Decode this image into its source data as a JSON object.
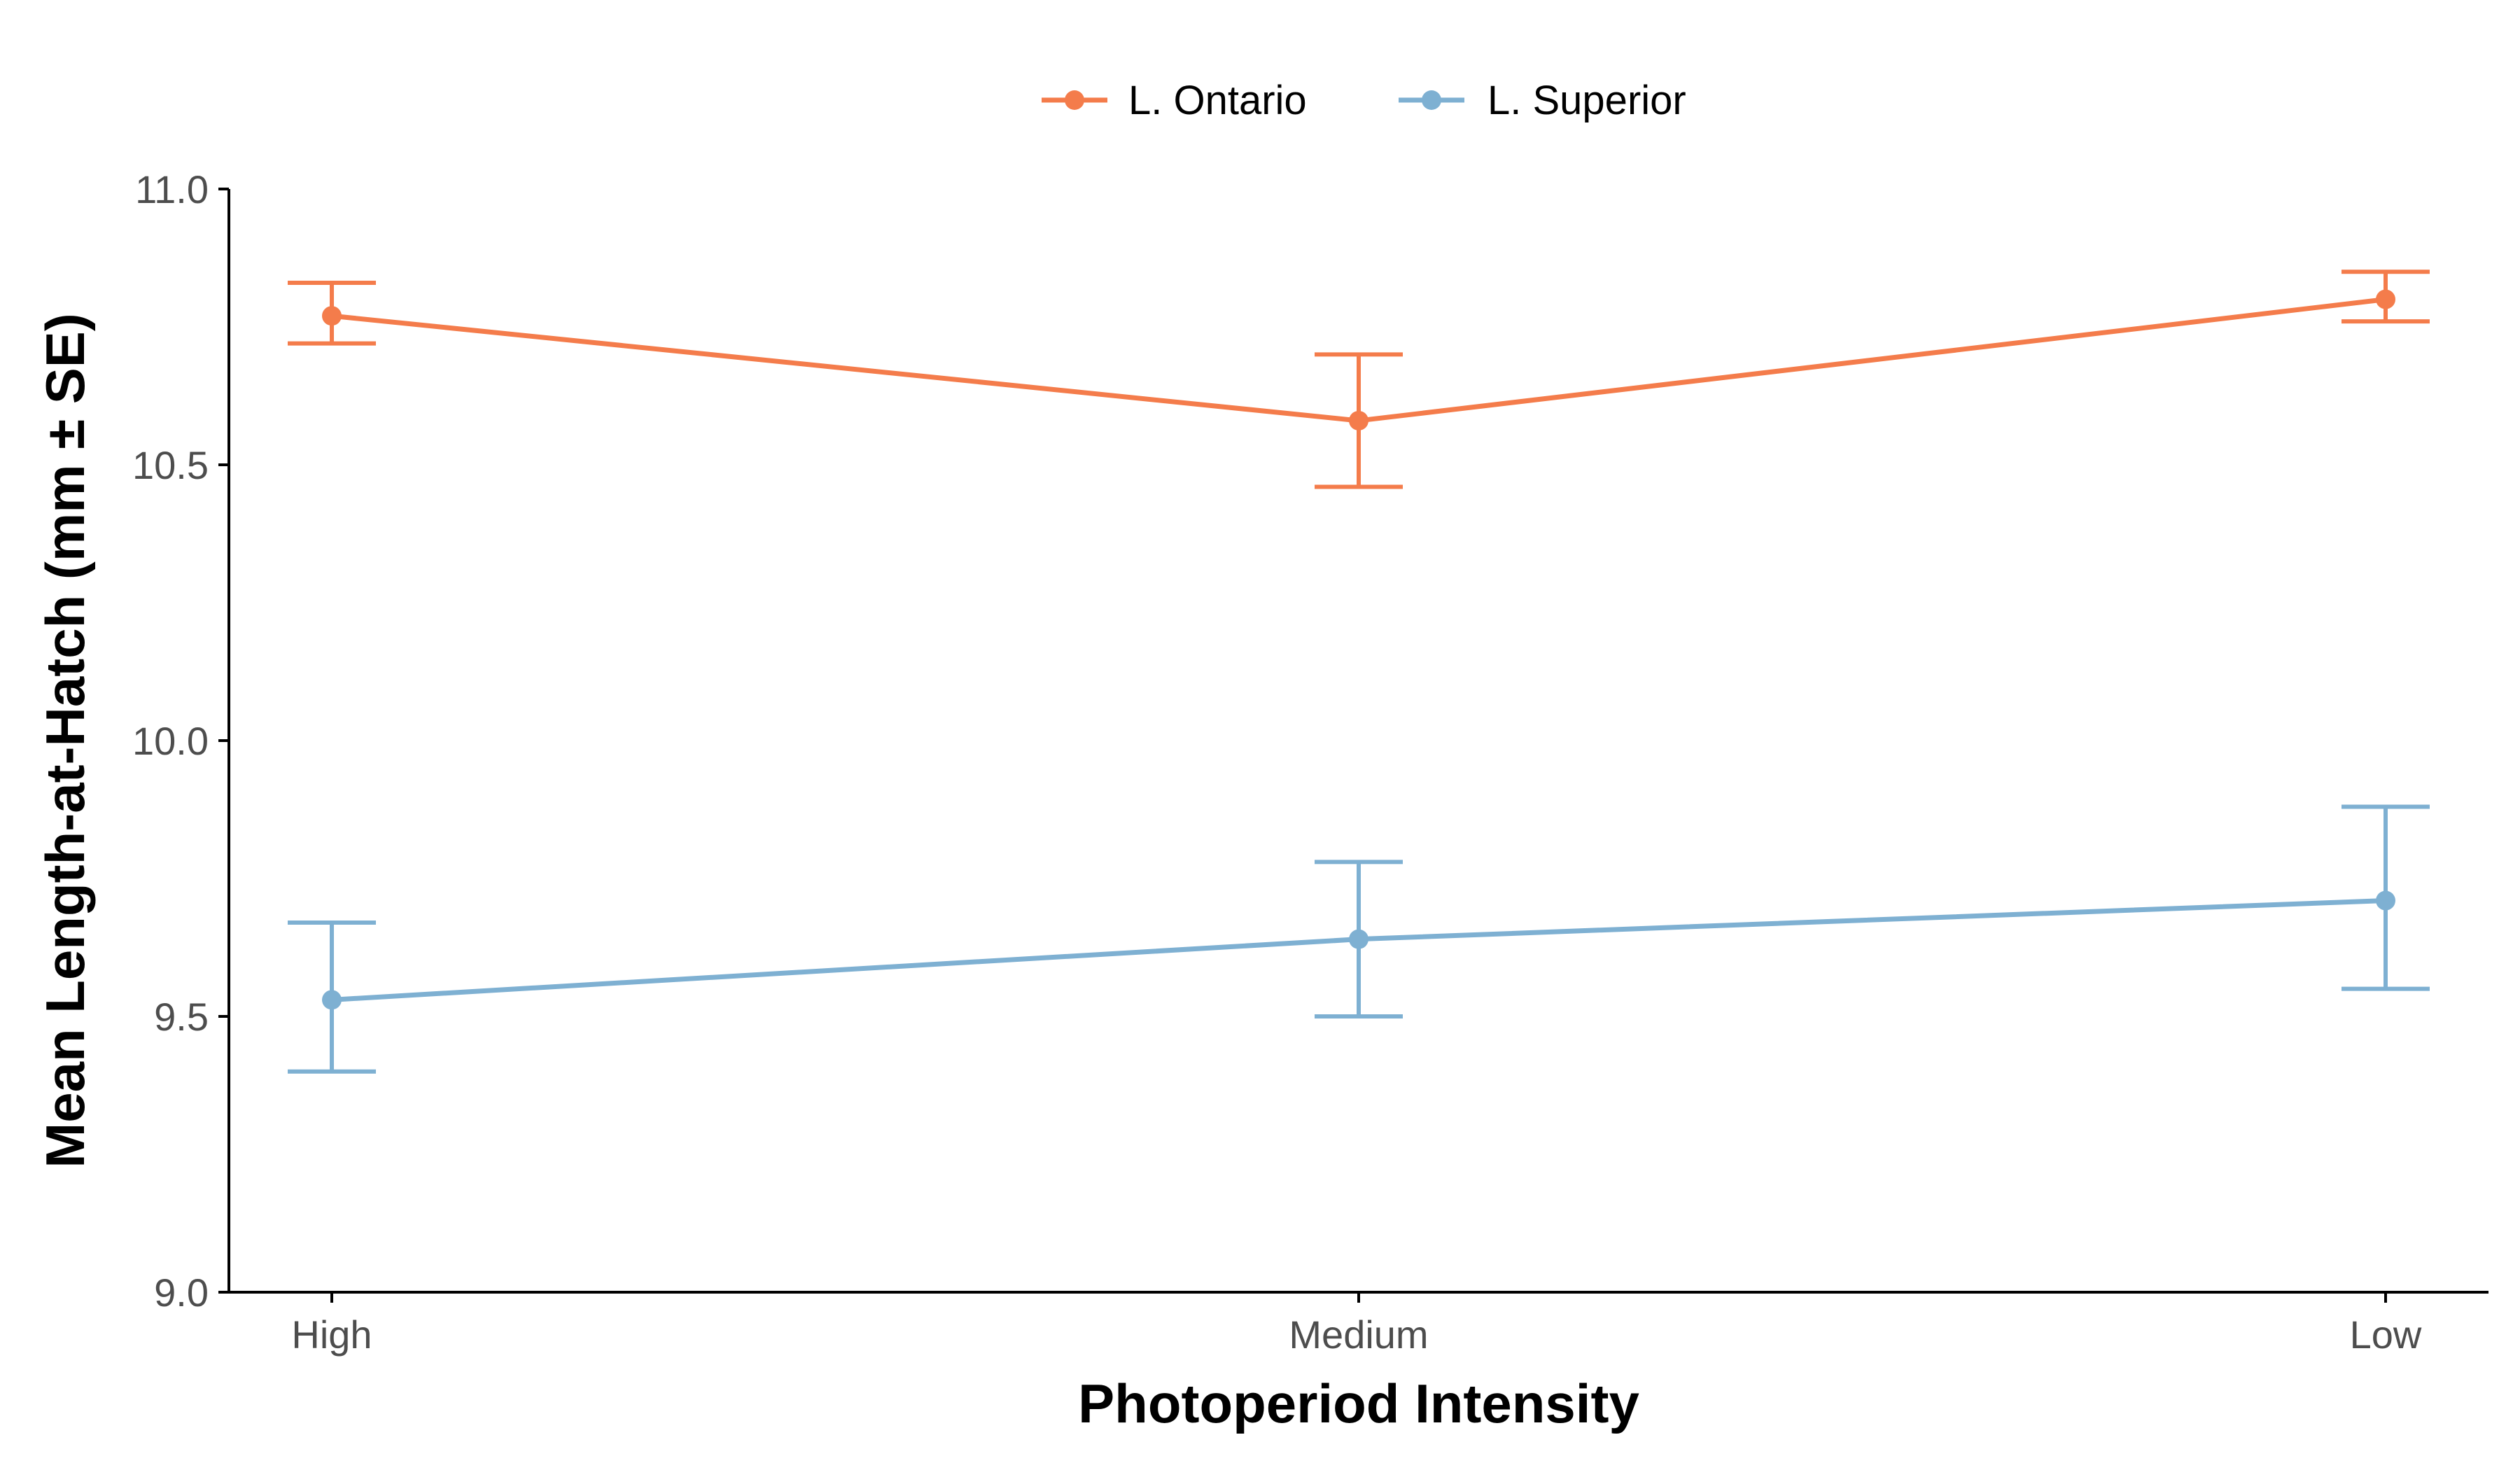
{
  "chart_data": {
    "type": "line",
    "categories": [
      "High",
      "Medium",
      "Low"
    ],
    "series": [
      {
        "name": "L. Ontario",
        "color": "#F47C4B",
        "values": [
          10.77,
          10.58,
          10.8
        ],
        "se_lower": [
          10.72,
          10.46,
          10.76
        ],
        "se_upper": [
          10.83,
          10.7,
          10.85
        ]
      },
      {
        "name": "L. Superior",
        "color": "#7EB0D2",
        "values": [
          9.53,
          9.64,
          9.71
        ],
        "se_lower": [
          9.4,
          9.5,
          9.55
        ],
        "se_upper": [
          9.67,
          9.78,
          9.88
        ]
      }
    ],
    "xlabel": "Photoperiod Intensity",
    "ylabel": "Mean Length-at-Hatch (mm ± SE)",
    "ylim": [
      9.0,
      11.0
    ],
    "yticks": [
      "9.0",
      "9.5",
      "10.0",
      "10.5",
      "11.0"
    ],
    "grid": false,
    "legend_position": "top-center"
  }
}
